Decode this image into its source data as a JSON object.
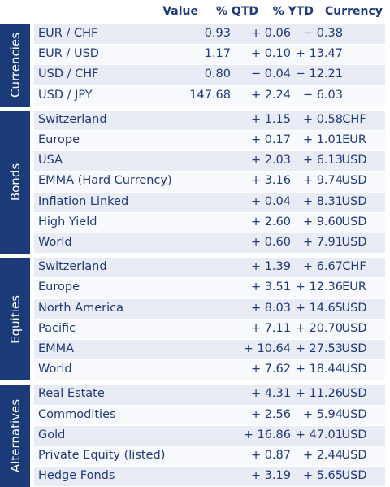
{
  "header": {
    "value": "Value",
    "qtd": "% QTD",
    "ytd": "% YTD",
    "currency": "Currency"
  },
  "sections": [
    {
      "label": "Currencies",
      "rows": [
        {
          "name": "EUR / CHF",
          "value": "0.93",
          "qtd": "+ 0.06",
          "ytd": "− 0.38",
          "currency": ""
        },
        {
          "name": "EUR / USD",
          "value": "1.17",
          "qtd": "+ 0.10",
          "ytd": "+ 13.47",
          "currency": ""
        },
        {
          "name": "USD / CHF",
          "value": "0.80",
          "qtd": "− 0.04",
          "ytd": "− 12.21",
          "currency": ""
        },
        {
          "name": "USD / JPY",
          "value": "147.68",
          "qtd": "+ 2.24",
          "ytd": "− 6.03",
          "currency": ""
        }
      ]
    },
    {
      "label": "Bonds",
      "rows": [
        {
          "name": "Switzerland",
          "value": "",
          "qtd": "+ 1.15",
          "ytd": "+ 0.58",
          "currency": "CHF"
        },
        {
          "name": "Europe",
          "value": "",
          "qtd": "+ 0.17",
          "ytd": "+ 1.01",
          "currency": "EUR"
        },
        {
          "name": "USA",
          "value": "",
          "qtd": "+ 2.03",
          "ytd": "+ 6.13",
          "currency": "USD"
        },
        {
          "name": "EMMA (Hard Currency)",
          "value": "",
          "qtd": "+ 3.16",
          "ytd": "+ 9.74",
          "currency": "USD"
        },
        {
          "name": "Inflation Linked",
          "value": "",
          "qtd": "+ 0.04",
          "ytd": "+ 8.31",
          "currency": "USD"
        },
        {
          "name": "High Yield",
          "value": "",
          "qtd": "+ 2.60",
          "ytd": "+ 9.60",
          "currency": "USD"
        },
        {
          "name": "World",
          "value": "",
          "qtd": "+ 0.60",
          "ytd": "+ 7.91",
          "currency": "USD"
        }
      ]
    },
    {
      "label": "Equities",
      "rows": [
        {
          "name": "Switzerland",
          "value": "",
          "qtd": "+ 1.39",
          "ytd": "+ 6.67",
          "currency": "CHF"
        },
        {
          "name": "Europe",
          "value": "",
          "qtd": "+ 3.51",
          "ytd": "+ 12.36",
          "currency": "EUR"
        },
        {
          "name": "North America",
          "value": "",
          "qtd": "+ 8.03",
          "ytd": "+ 14.65",
          "currency": "USD"
        },
        {
          "name": "Pacific",
          "value": "",
          "qtd": "+ 7.11",
          "ytd": "+ 20.70",
          "currency": "USD"
        },
        {
          "name": "EMMA",
          "value": "",
          "qtd": "+ 10.64",
          "ytd": "+ 27.53",
          "currency": "USD"
        },
        {
          "name": "World",
          "value": "",
          "qtd": "+ 7.62",
          "ytd": "+ 18.44",
          "currency": "USD"
        }
      ]
    },
    {
      "label": "Alternatives",
      "rows": [
        {
          "name": "Real Estate",
          "value": "",
          "qtd": "+ 4.31",
          "ytd": "+ 11.26",
          "currency": "USD"
        },
        {
          "name": "Commodities",
          "value": "",
          "qtd": "+ 2.56",
          "ytd": "+ 5.94",
          "currency": "USD"
        },
        {
          "name": "Gold",
          "value": "",
          "qtd": "+ 16.86",
          "ytd": "+ 47.01",
          "currency": "USD"
        },
        {
          "name": "Private Equity (listed)",
          "value": "",
          "qtd": "+ 0.87",
          "ytd": "+ 2.44",
          "currency": "USD"
        },
        {
          "name": "Hedge Fonds",
          "value": "",
          "qtd": "+ 3.19",
          "ytd": "+ 5.65",
          "currency": "USD"
        }
      ]
    }
  ]
}
